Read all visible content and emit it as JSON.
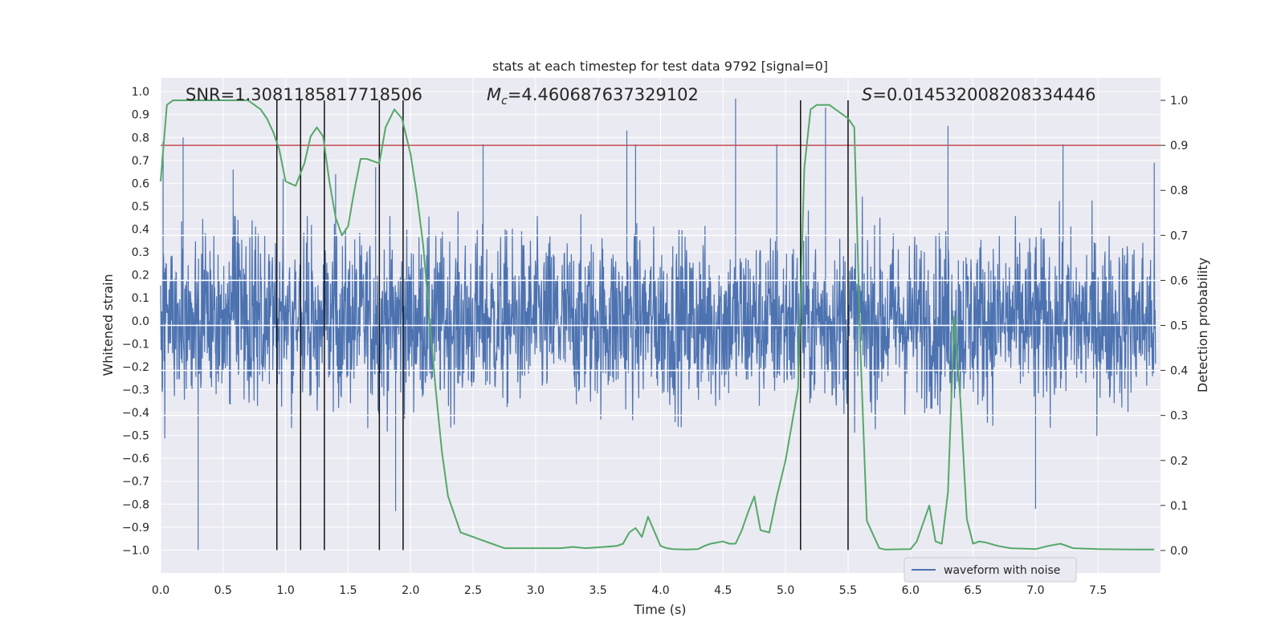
{
  "chart_data": {
    "type": "line",
    "title": "stats at each timestep for test data 9792 [signal=0]",
    "xlabel": "Time (s)",
    "ylabel": "Whitened strain",
    "y2label": "Detection probability",
    "xlim": [
      0.0,
      8.0
    ],
    "ylim": [
      -1.1,
      1.06
    ],
    "y2lim": [
      -0.05,
      1.05
    ],
    "x_ticks": [
      "0.0",
      "0.5",
      "1.0",
      "1.5",
      "2.0",
      "2.5",
      "3.0",
      "3.5",
      "4.0",
      "4.5",
      "5.0",
      "5.5",
      "6.0",
      "6.5",
      "7.0",
      "7.5"
    ],
    "y_ticks": [
      "1.0",
      "0.9",
      "0.8",
      "0.7",
      "0.6",
      "0.5",
      "0.4",
      "0.3",
      "0.2",
      "0.1",
      "0.0",
      "-0.1",
      "-0.2",
      "-0.3",
      "-0.4",
      "-0.5",
      "-0.6",
      "-0.7",
      "-0.8",
      "-0.9",
      "-1.0"
    ],
    "y2_ticks": [
      "1.0",
      "0.9",
      "0.8",
      "0.7",
      "0.6",
      "0.5",
      "0.4",
      "0.3",
      "0.2",
      "0.1",
      "0.0"
    ],
    "grid": true,
    "legend_position": "lower-right",
    "annotations": {
      "snr": "SNR=1.3081185817718506",
      "mc": "=4.460687637329102",
      "mc_symbol": "M",
      "mc_sub": "c",
      "s": "=0.014532008208334446",
      "s_symbol": "S"
    },
    "threshold": {
      "value": 0.9,
      "axis": "y2",
      "color": "#c44e52"
    },
    "vertical_lines_x": [
      0.93,
      1.12,
      1.31,
      1.75,
      1.94,
      5.12,
      5.5
    ],
    "series": [
      {
        "name": "waveform with noise",
        "axis": "y",
        "color": "#4c72b0",
        "style": "dense noise, envelope approx -1.0 to 1.0",
        "peaks_x": [
          0.02,
          0.18,
          0.3,
          0.58,
          0.98,
          1.4,
          1.72,
          1.88,
          2.58,
          3.73,
          3.8,
          4.6,
          4.93,
          5.32,
          6.3,
          7.0,
          7.22,
          7.95
        ],
        "peaks_y": [
          0.78,
          0.8,
          -1.0,
          0.66,
          0.62,
          0.64,
          0.67,
          -0.83,
          0.77,
          0.83,
          0.77,
          0.97,
          0.77,
          0.93,
          0.85,
          -0.82,
          0.77,
          0.69
        ]
      },
      {
        "name": "Detection probability",
        "axis": "y2",
        "color": "#55a868",
        "x": [
          0.0,
          0.05,
          0.1,
          0.15,
          0.2,
          0.3,
          0.5,
          0.6,
          0.7,
          0.75,
          0.8,
          0.85,
          0.9,
          0.95,
          1.0,
          1.08,
          1.15,
          1.2,
          1.25,
          1.3,
          1.35,
          1.4,
          1.45,
          1.5,
          1.55,
          1.6,
          1.65,
          1.75,
          1.8,
          1.87,
          1.93,
          2.0,
          2.05,
          2.1,
          2.15,
          2.2,
          2.25,
          2.3,
          2.4,
          2.5,
          2.55,
          2.65,
          2.7,
          2.75,
          2.8,
          3.0,
          3.1,
          3.2,
          3.3,
          3.4,
          3.55,
          3.65,
          3.7,
          3.75,
          3.8,
          3.85,
          3.9,
          4.0,
          4.05,
          4.1,
          4.2,
          4.3,
          4.35,
          4.4,
          4.5,
          4.55,
          4.6,
          4.65,
          4.7,
          4.75,
          4.8,
          4.87,
          4.93,
          5.0,
          5.05,
          5.1,
          5.15,
          5.2,
          5.25,
          5.35,
          5.45,
          5.5,
          5.55,
          5.6,
          5.65,
          5.75,
          5.8,
          6.0,
          6.05,
          6.1,
          6.15,
          6.2,
          6.25,
          6.3,
          6.35,
          6.4,
          6.45,
          6.5,
          6.55,
          6.6,
          6.7,
          6.8,
          7.0,
          7.1,
          7.2,
          7.3,
          7.5,
          7.8,
          7.95
        ],
        "values": [
          0.82,
          0.99,
          1.0,
          1.0,
          1.0,
          1.0,
          1.0,
          1.0,
          1.0,
          0.99,
          0.98,
          0.96,
          0.93,
          0.89,
          0.82,
          0.81,
          0.86,
          0.92,
          0.94,
          0.92,
          0.82,
          0.74,
          0.7,
          0.72,
          0.8,
          0.87,
          0.87,
          0.86,
          0.94,
          0.98,
          0.96,
          0.88,
          0.79,
          0.68,
          0.52,
          0.36,
          0.22,
          0.12,
          0.04,
          0.03,
          0.025,
          0.015,
          0.01,
          0.005,
          0.005,
          0.005,
          0.005,
          0.005,
          0.008,
          0.005,
          0.008,
          0.01,
          0.015,
          0.04,
          0.05,
          0.03,
          0.075,
          0.01,
          0.005,
          0.003,
          0.002,
          0.003,
          0.01,
          0.015,
          0.02,
          0.015,
          0.015,
          0.045,
          0.085,
          0.12,
          0.045,
          0.04,
          0.12,
          0.2,
          0.28,
          0.36,
          0.85,
          0.98,
          0.99,
          0.99,
          0.97,
          0.96,
          0.94,
          0.44,
          0.066,
          0.005,
          0.002,
          0.003,
          0.02,
          0.06,
          0.1,
          0.02,
          0.015,
          0.13,
          0.52,
          0.33,
          0.07,
          0.015,
          0.02,
          0.018,
          0.01,
          0.005,
          0.003,
          0.01,
          0.015,
          0.005,
          0.003,
          0.002,
          0.002
        ]
      }
    ]
  }
}
